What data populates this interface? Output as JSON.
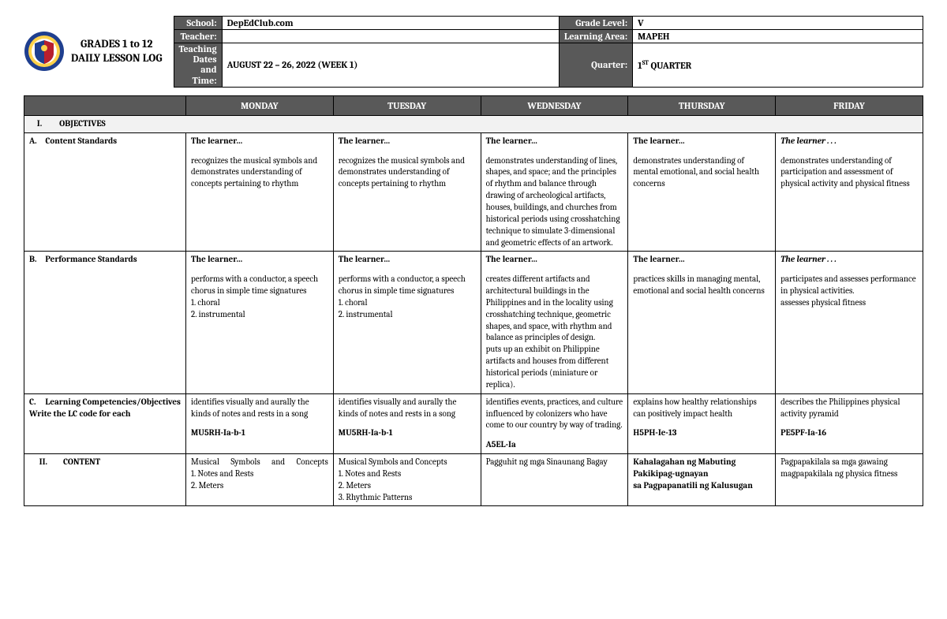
{
  "header": {
    "title_line1": "GRADES 1 to 12",
    "title_line2": "DAILY LESSON LOG",
    "labels": {
      "school": "School:",
      "teacher": "Teacher:",
      "dates": "Teaching Dates and Time:",
      "grade": "Grade Level:",
      "area": "Learning Area:",
      "quarter": "Quarter:"
    },
    "values": {
      "school": "DepEdClub.com",
      "teacher": "",
      "dates": "AUGUST 22 – 26, 2022 (WEEK 1)",
      "grade": "V",
      "area": "MAPEH",
      "quarter_num": "1",
      "quarter_ord": "ST",
      "quarter_suffix": " QUARTER"
    },
    "logo_colors": {
      "ring_outer": "#1f3f8f",
      "ring_inner": "#ffd24a",
      "shield_blue": "#1f3f8f",
      "shield_red": "#b81f2d",
      "shield_white": "#ffffff"
    }
  },
  "days": [
    "MONDAY",
    "TUESDAY",
    "WEDNESDAY",
    "THURSDAY",
    "FRIDAY"
  ],
  "sections": {
    "objectives": {
      "roman": "I.",
      "label": "OBJECTIVES"
    },
    "content": {
      "roman": "II.",
      "label": "CONTENT"
    }
  },
  "rows": {
    "contentStd": {
      "letter": "A.",
      "label": "Content Standards",
      "cells": [
        {
          "lead": "The learner…",
          "lead_italic": false,
          "body": "recognizes the musical symbols and demonstrates understanding of concepts pertaining to rhythm"
        },
        {
          "lead": "The learner…",
          "lead_italic": false,
          "body": "recognizes the musical symbols and demonstrates understanding of concepts pertaining to rhythm"
        },
        {
          "lead": "The learner…",
          "lead_italic": false,
          "body": "demonstrates understanding of lines, shapes, and space; and the principles of rhythm and balance through drawing of archeological artifacts, houses, buildings, and churches from historical periods using crosshatching technique to simulate 3-dimensional and geometric effects of an artwork."
        },
        {
          "lead": "The learner…",
          "lead_italic": false,
          "body": "demonstrates understanding of mental emotional, and social health concerns"
        },
        {
          "lead": "The learner . . .",
          "lead_italic": true,
          "body": "demonstrates understanding of participation and assessment of physical activity and physical fitness"
        }
      ]
    },
    "perfStd": {
      "letter": "B.",
      "label": "Performance Standards",
      "cells": [
        {
          "lead": "The learner…",
          "lead_italic": false,
          "body": "performs with a conductor, a speech chorus in simple time signatures\n1. choral\n2. instrumental"
        },
        {
          "lead": "The learner…",
          "lead_italic": false,
          "body": "performs with a conductor, a speech chorus in simple time signatures\n1. choral\n2. instrumental"
        },
        {
          "lead": "The learner…",
          "lead_italic": false,
          "body": "creates different artifacts and architectural buildings in the Philippines and in the locality using crosshatching technique, geometric shapes, and space, with rhythm and balance as principles of design.\nputs up an exhibit on Philippine artifacts and houses from different historical periods (miniature or replica)."
        },
        {
          "lead": "The learner…",
          "lead_italic": false,
          "body": "practices skills in managing mental, emotional and social health concerns"
        },
        {
          "lead": "The learner . . .",
          "lead_italic": true,
          "body": "participates and assesses performance in physical activities.\nassesses physical fitness"
        }
      ]
    },
    "learnComp": {
      "letter": "C.",
      "label": "Learning Competencies/Objectives Write the LC code for each",
      "cells": [
        {
          "body": "identifies visually and aurally the kinds of notes and rests in a song",
          "code": "MU5RH-Ia-b-1"
        },
        {
          "body": "identifies visually and aurally the kinds of notes and rests in a song",
          "code": "MU5RH-Ia-b-1"
        },
        {
          "body": "identifies events, practices, and culture influenced by colonizers who have come to our country by way of trading.",
          "code": "A5EL-Ia"
        },
        {
          "body": "explains how healthy relationships can positively impact health",
          "code": "H5PH-Ie-13"
        },
        {
          "body": "describes the Philippines physical\nactivity pyramid",
          "code": "PE5PF-Ia-16"
        }
      ]
    },
    "contentRow": {
      "cells": [
        {
          "bold": false,
          "spread_first": true,
          "text": "Musical Symbols and Concepts\n1. Notes and Rests\n2. Meters"
        },
        {
          "bold": false,
          "text": "Musical Symbols and Concepts\n1. Notes and Rests\n2. Meters\n3. Rhythmic Patterns"
        },
        {
          "bold": false,
          "text": "Pagguhit ng mga Sinaunang Bagay"
        },
        {
          "bold": true,
          "text": "Kahalagahan ng Mabuting Pakikipag-ugnayan\nsa Pagpapanatili ng Kalusugan"
        },
        {
          "bold": false,
          "text": "Pagpapakilala sa mga gawaing magpapakilala ng physica fitness"
        }
      ]
    }
  }
}
